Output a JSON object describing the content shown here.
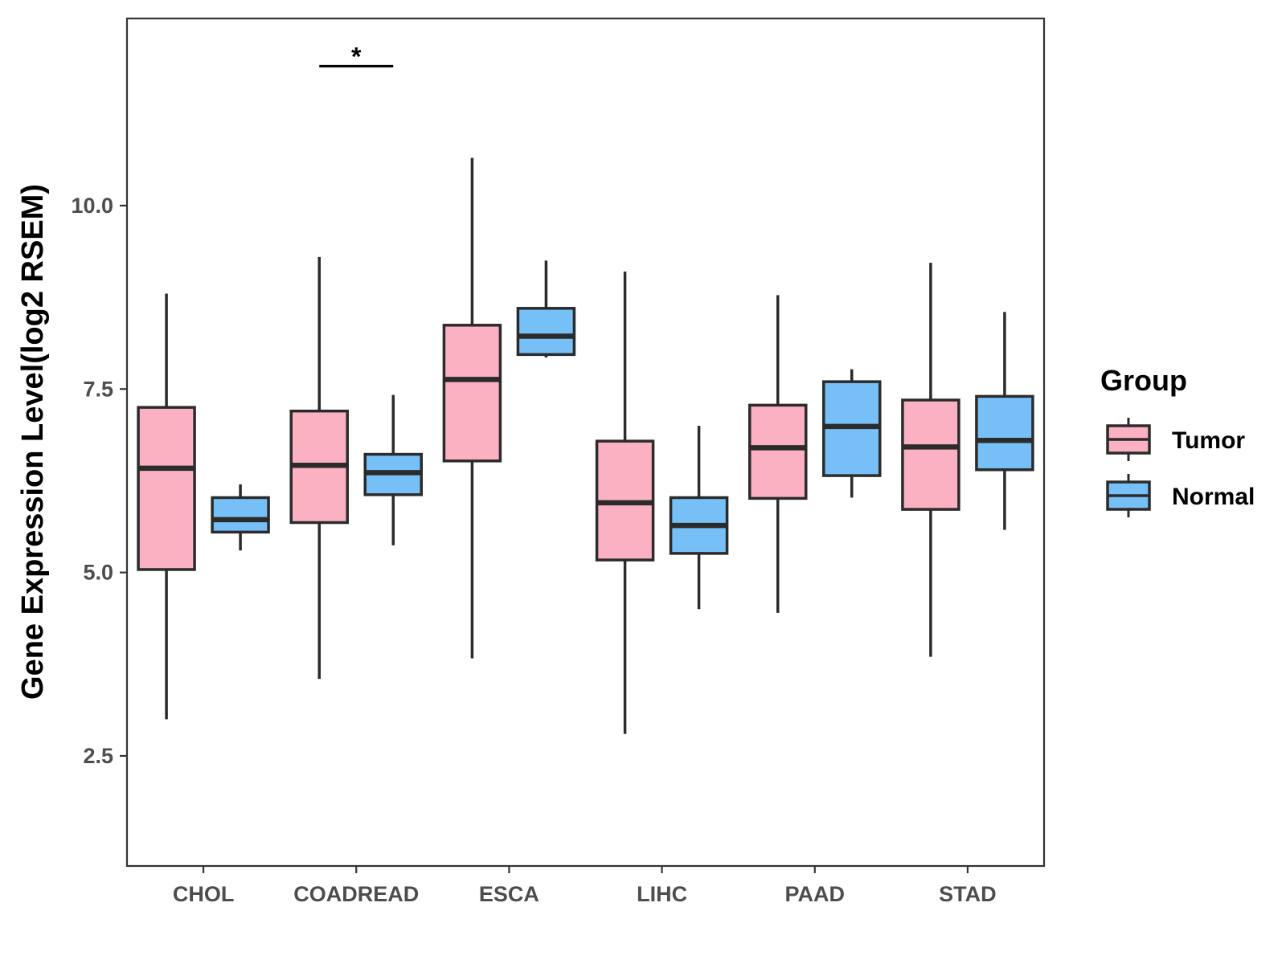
{
  "chart_data": {
    "type": "boxplot",
    "title": "",
    "xlabel": "",
    "ylabel": "Gene Expression Level(log2 RSEM)",
    "ylim": [
      1.0,
      12.55
    ],
    "y_ticks": [
      2.5,
      5.0,
      7.5,
      10.0
    ],
    "y_tick_labels": [
      "2.5",
      "5.0",
      "7.5",
      "10.0"
    ],
    "categories": [
      "CHOL",
      "COADREAD",
      "ESCA",
      "LIHC",
      "PAAD",
      "STAD"
    ],
    "grid": false,
    "legend": {
      "title": "Group",
      "position": "right",
      "entries": [
        "Tumor",
        "Normal"
      ]
    },
    "colors": {
      "Tumor": "#FBB1C2",
      "Normal": "#76C0F7",
      "outline": "#2b2b2b"
    },
    "series": [
      {
        "name": "Tumor",
        "boxes": [
          {
            "category": "CHOL",
            "min": 3.0,
            "q1": 5.04,
            "median": 6.42,
            "q3": 7.25,
            "max": 8.8
          },
          {
            "category": "COADREAD",
            "min": 3.55,
            "q1": 5.68,
            "median": 6.46,
            "q3": 7.2,
            "max": 9.3
          },
          {
            "category": "ESCA",
            "min": 3.83,
            "q1": 6.52,
            "median": 7.63,
            "q3": 8.37,
            "max": 10.65
          },
          {
            "category": "LIHC",
            "min": 2.8,
            "q1": 5.17,
            "median": 5.95,
            "q3": 6.79,
            "max": 9.1
          },
          {
            "category": "PAAD",
            "min": 4.45,
            "q1": 6.01,
            "median": 6.7,
            "q3": 7.28,
            "max": 8.78
          },
          {
            "category": "STAD",
            "min": 3.85,
            "q1": 5.86,
            "median": 6.71,
            "q3": 7.35,
            "max": 9.22
          }
        ]
      },
      {
        "name": "Normal",
        "boxes": [
          {
            "category": "CHOL",
            "min": 5.3,
            "q1": 5.55,
            "median": 5.72,
            "q3": 6.02,
            "max": 6.2
          },
          {
            "category": "COADREAD",
            "min": 5.37,
            "q1": 6.06,
            "median": 6.36,
            "q3": 6.61,
            "max": 7.42
          },
          {
            "category": "ESCA",
            "min": 7.93,
            "q1": 7.97,
            "median": 8.22,
            "q3": 8.6,
            "max": 9.25
          },
          {
            "category": "LIHC",
            "min": 4.5,
            "q1": 5.26,
            "median": 5.64,
            "q3": 6.02,
            "max": 7.0
          },
          {
            "category": "PAAD",
            "min": 6.02,
            "q1": 6.32,
            "median": 6.99,
            "q3": 7.6,
            "max": 7.77
          },
          {
            "category": "STAD",
            "min": 5.58,
            "q1": 6.4,
            "median": 6.8,
            "q3": 7.4,
            "max": 8.55
          }
        ]
      }
    ],
    "annotations": [
      {
        "category": "COADREAD",
        "text": "*",
        "y": 11.9
      }
    ]
  }
}
